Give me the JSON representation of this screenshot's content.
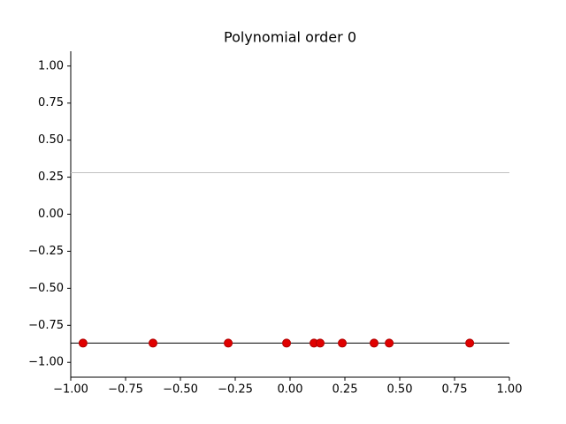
{
  "chart_data": {
    "type": "scatter",
    "title": "Polynomial order 0",
    "xlim": [
      -1,
      1
    ],
    "ylim": [
      -1.1,
      1.1
    ],
    "xticks": [
      {
        "value": -1,
        "label": "−1.00"
      },
      {
        "value": -0.75,
        "label": "−0.75"
      },
      {
        "value": -0.5,
        "label": "−0.50"
      },
      {
        "value": -0.25,
        "label": "−0.25"
      },
      {
        "value": 0,
        "label": "0.00"
      },
      {
        "value": 0.25,
        "label": "0.25"
      },
      {
        "value": 0.5,
        "label": "0.50"
      },
      {
        "value": 0.75,
        "label": "0.75"
      },
      {
        "value": 1,
        "label": "1.00"
      }
    ],
    "yticks": [
      {
        "value": -1,
        "label": "−1.00"
      },
      {
        "value": -0.75,
        "label": "−0.75"
      },
      {
        "value": -0.5,
        "label": "−0.50"
      },
      {
        "value": -0.25,
        "label": "−0.25"
      },
      {
        "value": 0,
        "label": "0.00"
      },
      {
        "value": 0.25,
        "label": "0.25"
      },
      {
        "value": 0.5,
        "label": "0.50"
      },
      {
        "value": 0.75,
        "label": "0.75"
      },
      {
        "value": 1,
        "label": "1.00"
      }
    ],
    "series": [
      {
        "type": "line",
        "color": "#c0c0c0",
        "x": [
          -1,
          1
        ],
        "values": [
          0.28,
          0.28
        ]
      },
      {
        "type": "line",
        "color": "#000000",
        "x": [
          -1,
          1
        ],
        "values": [
          -0.87,
          -0.87
        ]
      },
      {
        "type": "scatter",
        "color": "#e00000",
        "x": [
          -0.944,
          -0.625,
          -0.282,
          -0.016,
          0.109,
          0.137,
          0.238,
          0.383,
          0.452,
          0.819
        ],
        "values": [
          -0.87,
          -0.87,
          -0.87,
          -0.87,
          -0.87,
          -0.87,
          -0.87,
          -0.87,
          -0.87,
          -0.87
        ]
      }
    ]
  }
}
